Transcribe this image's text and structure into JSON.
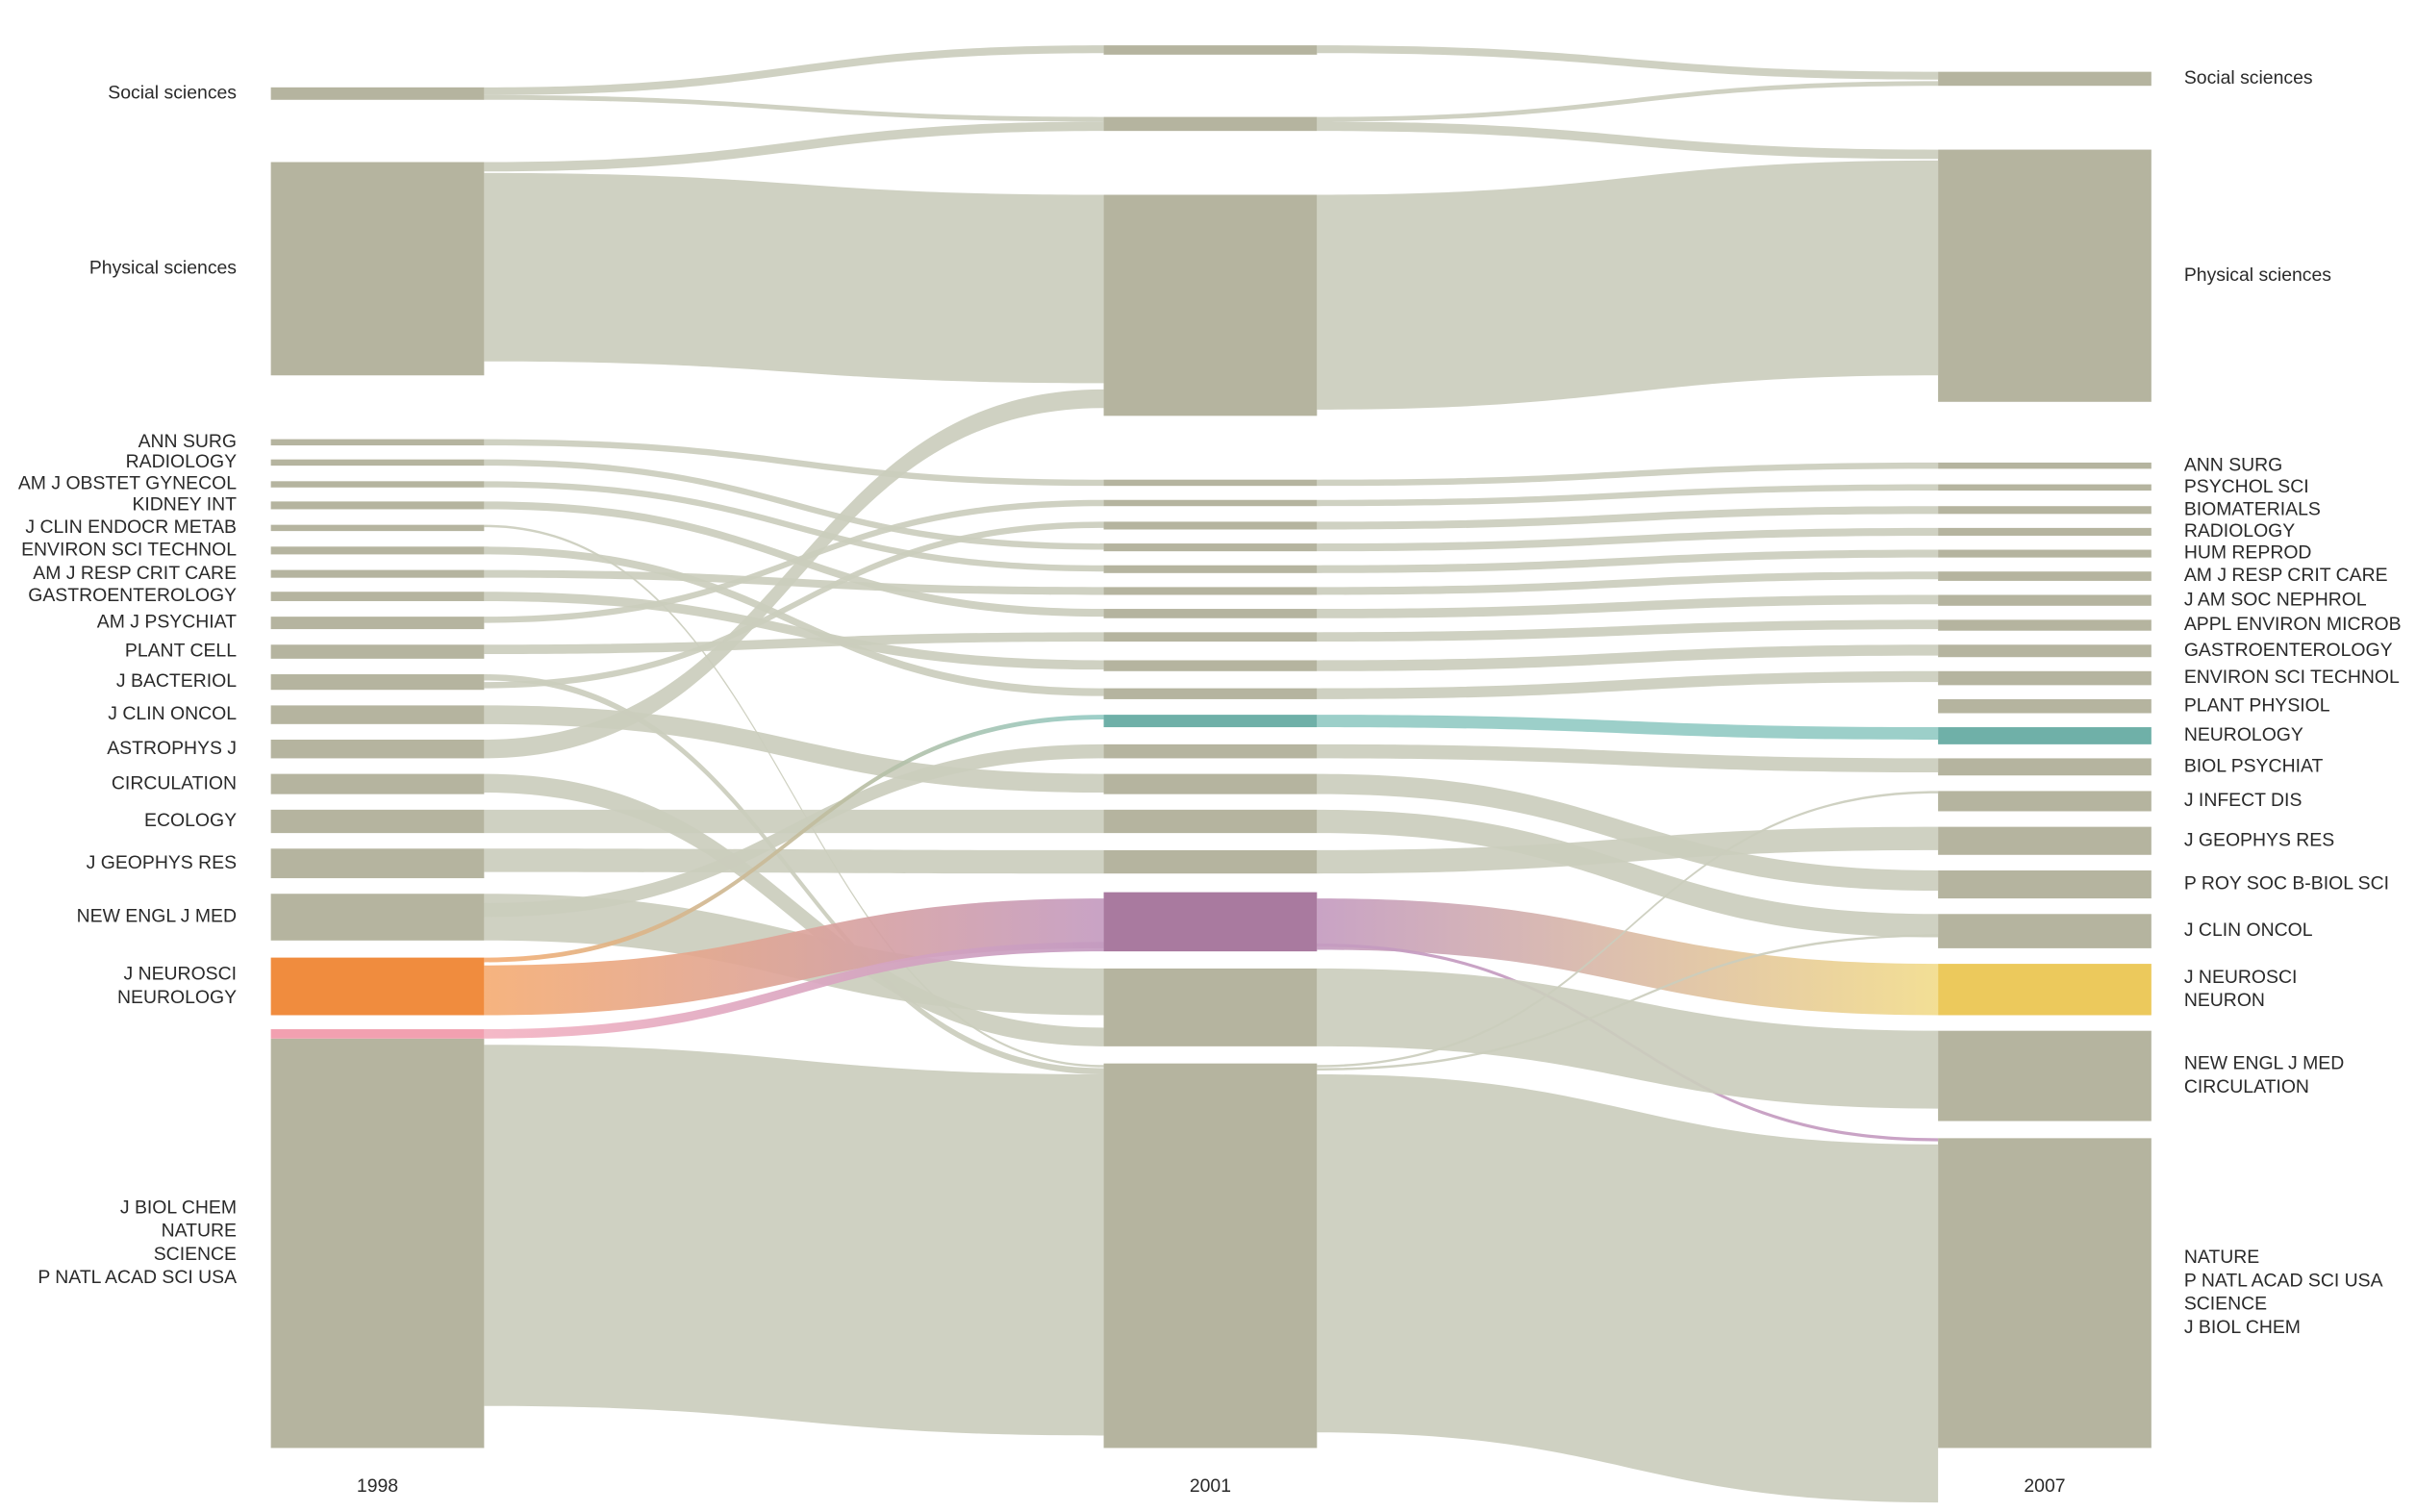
{
  "columns": [
    {
      "year": "1998",
      "modules": [
        {
          "labels": [
            "Social sciences"
          ]
        },
        {
          "labels": [
            "Physical sciences"
          ]
        },
        {
          "labels": [
            "ANN SURG"
          ]
        },
        {
          "labels": [
            "RADIOLOGY"
          ]
        },
        {
          "labels": [
            "AM J OBSTET GYNECOL"
          ]
        },
        {
          "labels": [
            "KIDNEY INT"
          ]
        },
        {
          "labels": [
            "J CLIN ENDOCR METAB"
          ]
        },
        {
          "labels": [
            "ENVIRON SCI TECHNOL"
          ]
        },
        {
          "labels": [
            "AM J RESP CRIT CARE"
          ]
        },
        {
          "labels": [
            "GASTROENTEROLOGY"
          ]
        },
        {
          "labels": [
            "AM J PSYCHIAT"
          ]
        },
        {
          "labels": [
            "PLANT CELL"
          ]
        },
        {
          "labels": [
            "J BACTERIOL"
          ]
        },
        {
          "labels": [
            "J CLIN ONCOL"
          ]
        },
        {
          "labels": [
            "ASTROPHYS J"
          ]
        },
        {
          "labels": [
            "CIRCULATION"
          ]
        },
        {
          "labels": [
            "ECOLOGY"
          ]
        },
        {
          "labels": [
            "J GEOPHYS RES"
          ]
        },
        {
          "labels": [
            "NEW ENGL J MED"
          ]
        },
        {
          "labels": [
            "J NEUROSCI",
            "NEUROLOGY"
          ]
        },
        {
          "labels": [
            "J BIOL CHEM",
            "NATURE",
            "SCIENCE",
            "P NATL ACAD SCI USA"
          ]
        }
      ]
    },
    {
      "year": "2001"
    },
    {
      "year": "2007",
      "modules": [
        {
          "labels": [
            "Social sciences"
          ]
        },
        {
          "labels": [
            "Physical sciences"
          ]
        },
        {
          "labels": [
            "ANN SURG"
          ]
        },
        {
          "labels": [
            "PSYCHOL SCI"
          ]
        },
        {
          "labels": [
            "BIOMATERIALS"
          ]
        },
        {
          "labels": [
            "RADIOLOGY"
          ]
        },
        {
          "labels": [
            "HUM REPROD"
          ]
        },
        {
          "labels": [
            "AM J RESP CRIT CARE"
          ]
        },
        {
          "labels": [
            "J AM SOC NEPHROL"
          ]
        },
        {
          "labels": [
            "APPL ENVIRON MICROB"
          ]
        },
        {
          "labels": [
            "GASTROENTEROLOGY"
          ]
        },
        {
          "labels": [
            "ENVIRON SCI TECHNOL"
          ]
        },
        {
          "labels": [
            "PLANT PHYSIOL"
          ]
        },
        {
          "labels": [
            "NEUROLOGY"
          ]
        },
        {
          "labels": [
            "BIOL PSYCHIAT"
          ]
        },
        {
          "labels": [
            "J INFECT DIS"
          ]
        },
        {
          "labels": [
            "J GEOPHYS RES"
          ]
        },
        {
          "labels": [
            "P ROY SOC B-BIOL SCI"
          ]
        },
        {
          "labels": [
            "J CLIN ONCOL"
          ]
        },
        {
          "labels": [
            "J NEUROSCI",
            "NEURON"
          ]
        },
        {
          "labels": [
            "NEW ENGL J MED",
            "CIRCULATION"
          ]
        },
        {
          "labels": [
            "NATURE",
            "P NATL ACAD SCI USA",
            "SCIENCE",
            "J BIOL CHEM"
          ]
        }
      ]
    }
  ]
}
